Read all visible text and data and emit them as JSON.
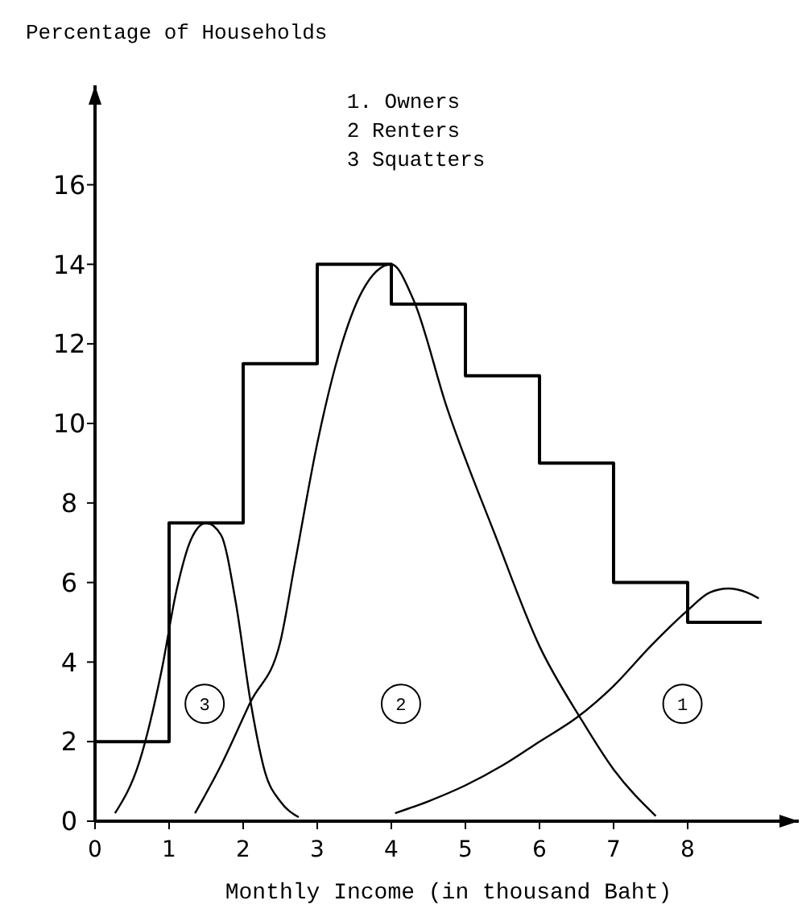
{
  "chart_data": {
    "type": "histogram",
    "ylabel": "Percentage of Households",
    "xlabel": "Monthly Income (in thousand Baht)",
    "bins": [
      0,
      1,
      2,
      3,
      4,
      5,
      6,
      7,
      8,
      9
    ],
    "values": [
      2,
      7.5,
      11.5,
      14,
      13,
      11.2,
      9,
      6,
      5
    ],
    "color": "#000000",
    "xlim": [
      0,
      9.5
    ],
    "ylim": [
      0,
      18.5
    ],
    "xticks": [
      0,
      1,
      2,
      3,
      4,
      5,
      6,
      7,
      8
    ],
    "yticks": [
      0,
      2,
      4,
      6,
      8,
      10,
      12,
      14,
      16
    ],
    "series": [
      {
        "type": "line",
        "color": "#000000",
        "x": [
          4.05,
          4.5,
          5,
          5.5,
          6,
          6.5,
          7,
          7.5,
          8,
          8.3,
          8.55,
          8.8,
          8.96
        ],
        "values": [
          0.2,
          0.5,
          0.9,
          1.4,
          2,
          2.6,
          3.4,
          4.4,
          5.3,
          5.75,
          5.85,
          5.75,
          5.6
        ]
      },
      {
        "type": "line",
        "color": "#000000",
        "x": [
          1.35,
          1.7,
          2.1,
          2.5,
          2.7,
          3,
          3.3,
          3.6,
          4,
          4.3,
          4.75,
          5.4,
          6,
          6.55,
          7,
          7.57
        ],
        "values": [
          0.2,
          1.4,
          3,
          4.5,
          6.5,
          9.5,
          11.8,
          13.3,
          14,
          13.1,
          10.4,
          7.2,
          4.4,
          2.6,
          1.3,
          0.13
        ]
      },
      {
        "type": "line",
        "color": "#000000",
        "x": [
          0.27,
          0.6,
          0.9,
          1.1,
          1.3,
          1.5,
          1.7,
          1.9,
          2.1,
          2.3,
          2.5,
          2.75
        ],
        "values": [
          0.2,
          1.5,
          3.8,
          5.8,
          7.1,
          7.5,
          7.2,
          5.5,
          3,
          1.2,
          0.5,
          0.1
        ]
      }
    ],
    "annotations": [
      "1. Owners",
      "2 Renters",
      "3 Squatters",
      {
        "text": "1",
        "x": 7.93,
        "y": 2.95
      },
      {
        "text": "2",
        "x": 4.13,
        "y": 2.95
      },
      {
        "text": "3",
        "x": 1.48,
        "y": 2.95
      }
    ]
  }
}
